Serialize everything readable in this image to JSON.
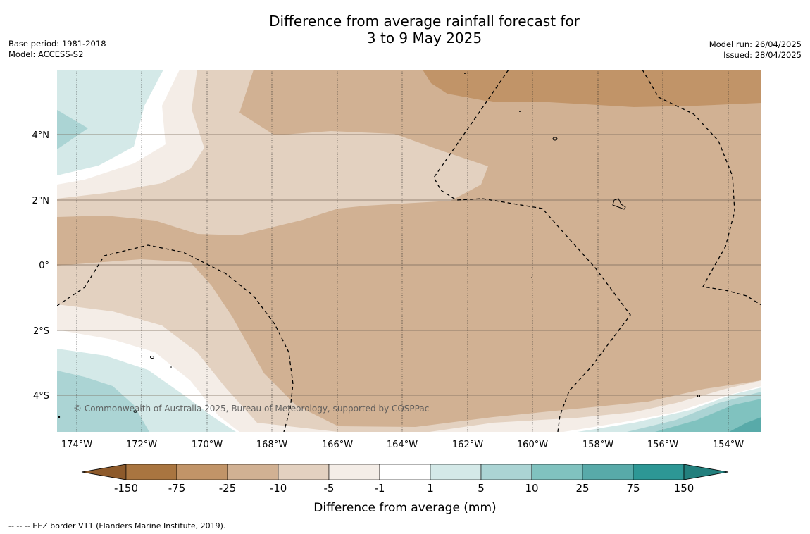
{
  "title": {
    "line1": "Difference from average rainfall forecast for",
    "line2": "3 to 9 May 2025"
  },
  "meta": {
    "base_period": "Base period: 1981-2018",
    "model": "Model: ACCESS-S2",
    "model_run": "Model run: 26/04/2025",
    "issued": "Issued: 28/04/2025"
  },
  "map": {
    "lon_ticks": [
      "174°W",
      "172°W",
      "170°W",
      "168°W",
      "166°W",
      "164°W",
      "162°W",
      "160°W",
      "158°W",
      "156°W",
      "154°W"
    ],
    "lat_ticks": [
      "4°N",
      "2°N",
      "0°",
      "2°S",
      "4°S"
    ],
    "copyright": "© Commonwealth of Australia 2025, Bureau of Meteorology, supported by COSPPac"
  },
  "colorbar": {
    "title": "Difference from average (mm)",
    "labels": [
      "-150",
      "-75",
      "-25",
      "-10",
      "-5",
      "-1",
      "1",
      "5",
      "10",
      "25",
      "75",
      "150"
    ],
    "colors": [
      "#a97540",
      "#c19468",
      "#d1b193",
      "#e3d1c0",
      "#f4ede7",
      "#ffffff",
      "#d4e9e8",
      "#abd4d4",
      "#80c2bf",
      "#58aaa9",
      "#2d9795"
    ],
    "under_color": "#8d5a2b",
    "over_color": "#237f7d"
  },
  "footer": {
    "legend": "--  --  -- EEZ border V11 (Flanders Marine Institute, 2019)."
  }
}
